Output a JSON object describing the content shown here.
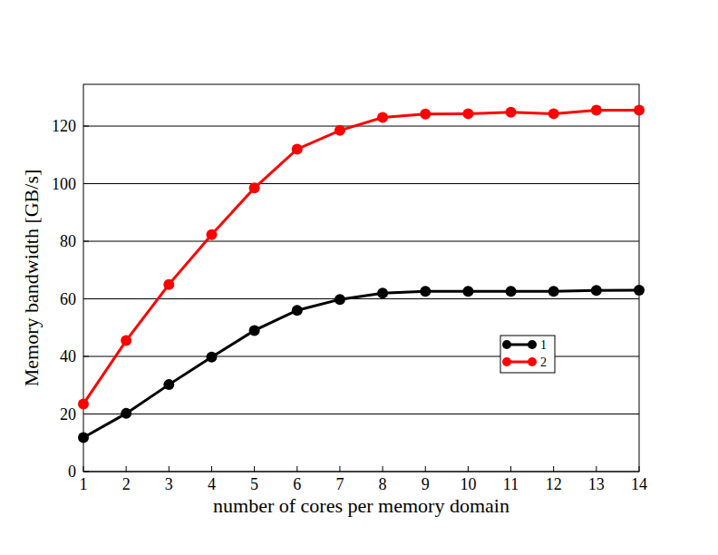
{
  "chart_data": {
    "type": "line",
    "x_label": "number of cores per memory domain",
    "y_label": "Memory bandwidth [GB/s]",
    "x": [
      1,
      2,
      3,
      4,
      5,
      6,
      7,
      8,
      9,
      10,
      11,
      12,
      13,
      14
    ],
    "series": [
      {
        "name": "1",
        "color": "#000000",
        "marker": "circle",
        "line_style": "solid",
        "values": [
          11.8,
          20.2,
          30.2,
          39.8,
          49.0,
          56.0,
          59.8,
          62.0,
          62.6,
          62.6,
          62.6,
          62.6,
          62.9,
          63.0
        ]
      },
      {
        "name": "2",
        "color": "#ff0000",
        "marker": "circle",
        "line_style": "solid",
        "values": [
          23.5,
          45.5,
          65.0,
          82.3,
          98.5,
          112.0,
          118.5,
          123.0,
          124.2,
          124.3,
          124.8,
          124.3,
          125.5,
          125.5
        ]
      }
    ],
    "xlim": [
      1,
      14
    ],
    "xticks": [
      1,
      2,
      3,
      4,
      5,
      6,
      7,
      8,
      9,
      10,
      11,
      12,
      13,
      14
    ],
    "ylim": [
      0,
      134.5
    ],
    "yticks": [
      0,
      20,
      40,
      60,
      80,
      100,
      120
    ],
    "grid": true,
    "legend": "right"
  }
}
